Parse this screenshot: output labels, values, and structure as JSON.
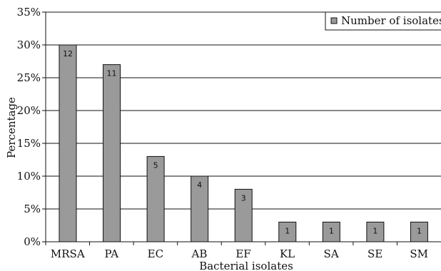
{
  "chart_data": {
    "type": "bar",
    "categories": [
      "MRSA",
      "PA",
      "EC",
      "AB",
      "EF",
      "KL",
      "SA",
      "SE",
      "SM"
    ],
    "series": [
      {
        "name": "Number of isolates",
        "values": [
          30,
          27,
          13,
          10,
          8,
          3,
          3,
          3,
          3
        ],
        "data_labels": [
          "12",
          "11",
          "5",
          "4",
          "3",
          "1",
          "1",
          "1",
          "1"
        ]
      }
    ],
    "xlabel": "Bacterial isolates",
    "ylabel": "Percentage",
    "ylim": [
      0,
      35
    ],
    "yticks": [
      0,
      5,
      10,
      15,
      20,
      25,
      30,
      35
    ],
    "ytick_labels": [
      "0%",
      "5%",
      "10%",
      "15%",
      "20%",
      "25%",
      "30%",
      "35%"
    ],
    "grid": true,
    "legend_position": "top-right",
    "bar_color": "#9a9a9a",
    "bar_edge_color": "#111111"
  }
}
